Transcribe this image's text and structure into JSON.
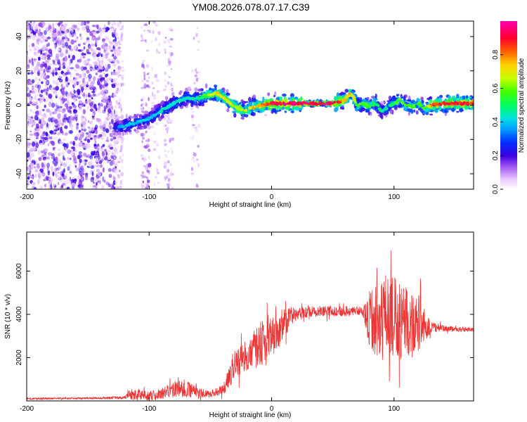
{
  "chart_data": [
    {
      "type": "heatmap",
      "title": "YM08.2026.078.07.17.C39",
      "xlabel": "Height of straight line (km)",
      "ylabel": "Frequency (Hz)",
      "xlim": [
        -200,
        165
      ],
      "ylim": [
        -49,
        49
      ],
      "x_ticks": [
        -200,
        -100,
        0,
        100
      ],
      "x_tick_labels": [
        "-200",
        "-100",
        "0",
        "100"
      ],
      "y_ticks": [
        -40,
        -20,
        0,
        20,
        40
      ],
      "y_tick_labels": [
        "-40",
        "-20",
        "0",
        "20",
        "40"
      ],
      "colorbar": {
        "label": "Normalized spectral amplitude",
        "range": [
          0,
          1
        ],
        "ticks": [
          0,
          0.2,
          0.4,
          0.6,
          0.8
        ],
        "tick_labels": [
          "0.0",
          "0.2",
          "0.4",
          "0.6",
          "0.8"
        ]
      },
      "ridge": {
        "x": [
          -127,
          -120,
          -110,
          -100,
          -90,
          -80,
          -70,
          -60,
          -52,
          -45,
          -40,
          -30,
          -22,
          -15,
          -8,
          0,
          10,
          30,
          50,
          56,
          60,
          65,
          70,
          75,
          80,
          85,
          90,
          95,
          100,
          105,
          110,
          115,
          120,
          125,
          130,
          140,
          150,
          165
        ],
        "y": [
          -13,
          -12,
          -10,
          -8,
          -3,
          1,
          4,
          4,
          6,
          7,
          5,
          -1,
          -3,
          -1,
          0,
          1,
          1,
          1,
          1,
          2,
          3,
          7,
          0,
          1,
          -1,
          2,
          -4,
          -1,
          1,
          3,
          0,
          -1,
          1,
          -2,
          0,
          1,
          1,
          1
        ],
        "amplitude": [
          0.35,
          0.4,
          0.4,
          0.4,
          0.45,
          0.45,
          0.45,
          0.5,
          0.65,
          0.75,
          0.7,
          0.7,
          0.7,
          0.75,
          0.8,
          0.95,
          0.95,
          0.95,
          0.95,
          0.85,
          0.75,
          0.75,
          0.6,
          0.6,
          0.6,
          0.55,
          0.45,
          0.5,
          0.55,
          0.6,
          0.55,
          0.6,
          0.6,
          0.55,
          0.85,
          0.9,
          0.9,
          0.9
        ]
      }
    },
    {
      "type": "line",
      "xlabel": "Height of straight line (km)",
      "ylabel": "SNR (10 * v/v)",
      "xlim": [
        -200,
        165
      ],
      "ylim": [
        0,
        7800
      ],
      "x_ticks": [
        -200,
        -100,
        0,
        100
      ],
      "x_tick_labels": [
        "-200",
        "-100",
        "0",
        "100"
      ],
      "y_ticks": [
        2000,
        4000,
        6000
      ],
      "y_tick_labels": [
        "2000",
        "4000",
        "6000"
      ],
      "series": [
        {
          "name": "SNR",
          "color": "#ee3333",
          "envelope": {
            "x": [
              -200,
              -160,
              -120,
              -115,
              -100,
              -90,
              -75,
              -60,
              -50,
              -40,
              -35,
              -30,
              -25,
              -20,
              -15,
              -10,
              -5,
              0,
              5,
              10,
              20,
              30,
              40,
              50,
              55,
              60,
              65,
              70,
              75,
              78,
              80,
              85,
              90,
              95,
              100,
              105,
              110,
              115,
              120,
              125,
              130,
              140,
              150,
              165
            ],
            "mean": [
              100,
              120,
              150,
              300,
              250,
              320,
              650,
              350,
              330,
              520,
              1000,
              1700,
              1900,
              2100,
              2300,
              2600,
              2800,
              3000,
              3200,
              3600,
              4000,
              4100,
              4150,
              4150,
              4150,
              4150,
              4100,
              4100,
              4100,
              3900,
              3700,
              3700,
              3700,
              3700,
              3700,
              3700,
              3650,
              3600,
              3600,
              3550,
              3400,
              3350,
              3300,
              3300
            ],
            "spread": [
              40,
              40,
              60,
              250,
              200,
              250,
              500,
              250,
              150,
              250,
              500,
              650,
              650,
              750,
              850,
              1200,
              900,
              900,
              900,
              700,
              300,
              250,
              250,
              250,
              250,
              250,
              250,
              250,
              250,
              900,
              1500,
              1600,
              1800,
              2000,
              2100,
              1800,
              1700,
              1600,
              1300,
              800,
              300,
              150,
              120,
              100
            ]
          }
        }
      ]
    }
  ]
}
